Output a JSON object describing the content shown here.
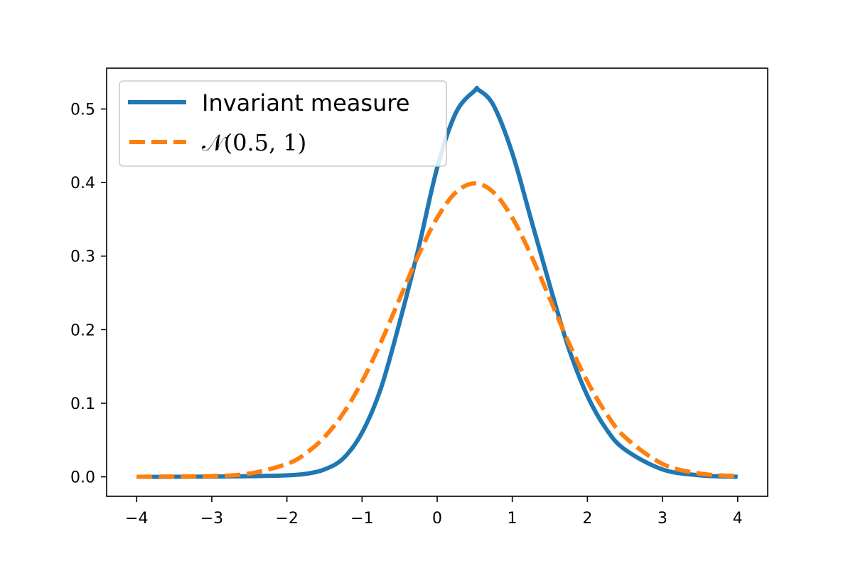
{
  "chart_data": {
    "type": "line",
    "title": "",
    "xlabel": "",
    "ylabel": "",
    "xlim": [
      -4.4,
      4.4
    ],
    "ylim": [
      -0.0265,
      0.5555
    ],
    "x_ticks": [
      -4,
      -3,
      -2,
      -1,
      0,
      1,
      2,
      3,
      4
    ],
    "x_tick_labels": [
      "−4",
      "−3",
      "−2",
      "−1",
      "0",
      "1",
      "2",
      "3",
      "4"
    ],
    "y_ticks": [
      0.0,
      0.1,
      0.2,
      0.3,
      0.4,
      0.5
    ],
    "y_tick_labels": [
      "0.0",
      "0.1",
      "0.2",
      "0.3",
      "0.4",
      "0.5"
    ],
    "grid": false,
    "legend_position": "top-left",
    "series": [
      {
        "name": "Invariant measure",
        "style": "solid",
        "color": "#1f77b4",
        "x": [
          -4,
          -3.5,
          -3,
          -2.5,
          -2,
          -1.75,
          -1.5,
          -1.25,
          -1,
          -0.75,
          -0.5,
          -0.25,
          0,
          0.25,
          0.5,
          0.55,
          0.75,
          1,
          1.25,
          1.5,
          1.75,
          2,
          2.25,
          2.5,
          3,
          3.5,
          4
        ],
        "y": [
          0.0,
          0.0,
          0.0003,
          0.0008,
          0.002,
          0.004,
          0.01,
          0.025,
          0.06,
          0.12,
          0.21,
          0.31,
          0.42,
          0.495,
          0.525,
          0.526,
          0.505,
          0.44,
          0.35,
          0.26,
          0.175,
          0.11,
          0.065,
          0.037,
          0.01,
          0.002,
          0.0
        ]
      },
      {
        "name": "𝒩(0.5, 1)",
        "style": "dashed",
        "color": "#ff7f0e",
        "x": [
          -4,
          -3.5,
          -3,
          -2.5,
          -2,
          -1.75,
          -1.5,
          -1.25,
          -1,
          -0.75,
          -0.5,
          -0.25,
          0,
          0.25,
          0.5,
          0.75,
          1,
          1.25,
          1.5,
          1.75,
          2,
          2.25,
          2.5,
          3,
          3.5,
          4
        ],
        "y": [
          0.0001,
          0.0004,
          0.0009,
          0.0044,
          0.0175,
          0.0317,
          0.054,
          0.0863,
          0.1295,
          0.1826,
          0.242,
          0.3011,
          0.3521,
          0.3867,
          0.3989,
          0.3867,
          0.3521,
          0.3011,
          0.242,
          0.1826,
          0.1295,
          0.0863,
          0.054,
          0.0175,
          0.0044,
          0.0009
        ]
      }
    ]
  },
  "colors": {
    "series_1": "#1f77b4",
    "series_2": "#ff7f0e",
    "axes": "#000000",
    "legend_border": "#cccccc"
  }
}
